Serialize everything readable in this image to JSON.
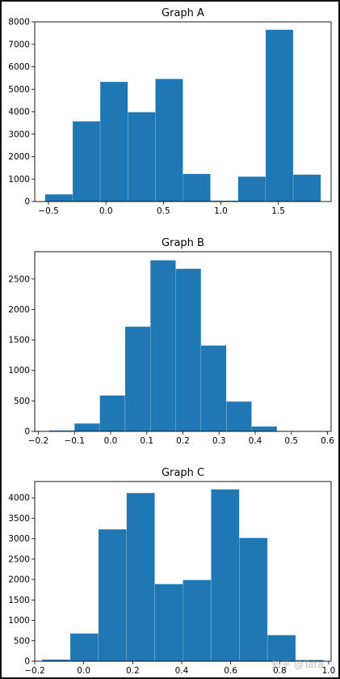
{
  "chart_data": [
    {
      "type": "bar",
      "title": "Graph A",
      "xlabel": "",
      "ylabel": "",
      "bin_edges": [
        -0.53,
        -0.29,
        -0.05,
        0.19,
        0.43,
        0.67,
        0.91,
        1.15,
        1.39,
        1.63,
        1.87
      ],
      "values": [
        320,
        3570,
        5330,
        3980,
        5460,
        1230,
        40,
        1110,
        7650,
        1200
      ],
      "xlim": [
        -0.62,
        1.96
      ],
      "ylim": [
        0,
        8000
      ],
      "xticks": [
        -0.5,
        0.0,
        0.5,
        1.0,
        1.5
      ],
      "xtick_labels": [
        "−0.5",
        "0.0",
        "0.5",
        "1.0",
        "1.5"
      ],
      "yticks": [
        0,
        1000,
        2000,
        3000,
        4000,
        5000,
        6000,
        7000,
        8000
      ],
      "ytick_labels": [
        "0",
        "1000",
        "2000",
        "3000",
        "4000",
        "5000",
        "6000",
        "7000",
        "8000"
      ],
      "grid": false,
      "color": "#1f77b4"
    },
    {
      "type": "bar",
      "title": "Graph B",
      "xlabel": "",
      "ylabel": "",
      "bin_edges": [
        -0.17,
        -0.1,
        -0.03,
        0.04,
        0.11,
        0.18,
        0.25,
        0.32,
        0.39,
        0.46,
        0.53
      ],
      "values": [
        15,
        130,
        590,
        1720,
        2810,
        2670,
        1410,
        490,
        80,
        5
      ],
      "xlim": [
        -0.21,
        0.61
      ],
      "ylim": [
        0,
        2950
      ],
      "xticks": [
        -0.2,
        -0.1,
        0.0,
        0.1,
        0.2,
        0.3,
        0.4,
        0.5,
        0.6
      ],
      "xtick_labels": [
        "−0.2",
        "−0.1",
        "0.0",
        "0.1",
        "0.2",
        "0.3",
        "0.4",
        "0.5",
        "0.6"
      ],
      "yticks": [
        0,
        500,
        1000,
        1500,
        2000,
        2500
      ],
      "ytick_labels": [
        "0",
        "500",
        "1000",
        "1500",
        "2000",
        "2500"
      ],
      "grid": false,
      "color": "#1f77b4"
    },
    {
      "type": "bar",
      "title": "Graph C",
      "xlabel": "",
      "ylabel": "",
      "bin_edges": [
        -0.17,
        -0.055,
        0.06,
        0.175,
        0.29,
        0.405,
        0.52,
        0.635,
        0.75,
        0.865,
        0.98
      ],
      "values": [
        40,
        680,
        3230,
        4120,
        1890,
        1990,
        4210,
        3020,
        640,
        30
      ],
      "xlim": [
        -0.2,
        1.01
      ],
      "ylim": [
        0,
        4400
      ],
      "xticks": [
        -0.2,
        0.0,
        0.2,
        0.4,
        0.6,
        0.8,
        1.0
      ],
      "xtick_labels": [
        "−0.2",
        "0.0",
        "0.2",
        "0.4",
        "0.6",
        "0.8",
        "1.0"
      ],
      "yticks": [
        0,
        500,
        1000,
        1500,
        2000,
        2500,
        3000,
        3500,
        4000
      ],
      "ytick_labels": [
        "0",
        "500",
        "1000",
        "1500",
        "2000",
        "2500",
        "3000",
        "3500",
        "4000"
      ],
      "grid": false,
      "color": "#1f77b4"
    }
  ],
  "watermark": "知乎 @Tata"
}
